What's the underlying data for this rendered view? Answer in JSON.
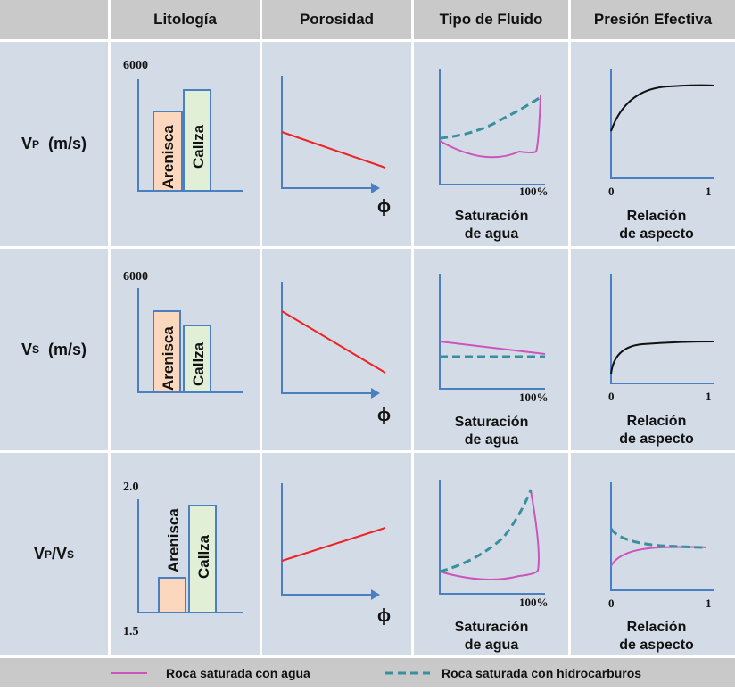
{
  "headers": [
    "Litología",
    "Porosidad",
    "Tipo de Fluido",
    "Presión Efectiva"
  ],
  "rows": [
    {
      "main": "V",
      "sub": "P",
      "unit": "(m/s)"
    },
    {
      "main": "V",
      "sub": "S",
      "unit": "(m/s)"
    },
    {
      "main": "V",
      "sub": "P",
      "main2": "/V",
      "sub2": "S"
    }
  ],
  "lithology": {
    "bar1": "Arenisca",
    "bar2": "Callza",
    "scale_top": [
      "6000",
      "6000",
      "2.0"
    ],
    "scale_bottom": "1.5"
  },
  "porosity_axis": "ϕ",
  "fluid": {
    "tick": "100%",
    "xlabel1": "Saturación",
    "xlabel2": "de agua"
  },
  "pressure": {
    "tick0": "0",
    "tick1": "1",
    "xlabel1": "Relación",
    "xlabel2": "de aspecto"
  },
  "legend": {
    "water": {
      "label": "Roca saturada con agua",
      "color": "#cc55bb"
    },
    "hydrocarbon": {
      "label": "Roca saturada con hidrocarburos",
      "color": "#3a8f9e"
    }
  },
  "colors": {
    "porosity_line": "#ee2222",
    "pressure_line": "#111111",
    "bar1": "#fad7bd",
    "bar2": "#e0efd6",
    "axis": "#4a7fc1"
  }
}
